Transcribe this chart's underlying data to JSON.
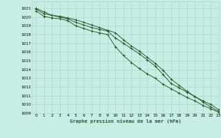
{
  "title": "Graphe pression niveau de la mer (hPa)",
  "bg_color": "#c8ede4",
  "grid_color": "#a8d8cc",
  "line_color": "#2d5a2d",
  "marker_color": "#2d5a2d",
  "xlim": [
    -0.5,
    23
  ],
  "ylim": [
    1009,
    1021.8
  ],
  "yticks": [
    1009,
    1010,
    1011,
    1012,
    1013,
    1014,
    1015,
    1016,
    1017,
    1018,
    1019,
    1020,
    1021
  ],
  "xticks": [
    0,
    1,
    2,
    3,
    4,
    5,
    6,
    7,
    8,
    9,
    10,
    11,
    12,
    13,
    14,
    15,
    16,
    17,
    18,
    19,
    20,
    21,
    22,
    23
  ],
  "series": [
    [
      1020.9,
      1020.4,
      1020.2,
      1020.0,
      1019.8,
      1019.4,
      1019.1,
      1018.8,
      1018.6,
      1018.4,
      1017.6,
      1017.0,
      1016.4,
      1015.8,
      1015.1,
      1014.4,
      1013.4,
      1012.4,
      1011.9,
      1011.4,
      1010.9,
      1010.4,
      1010.0,
      1009.4
    ],
    [
      1020.7,
      1020.1,
      1019.9,
      1019.8,
      1019.6,
      1019.0,
      1018.7,
      1018.4,
      1018.2,
      1018.0,
      1016.6,
      1015.6,
      1014.8,
      1014.1,
      1013.5,
      1013.0,
      1012.3,
      1011.8,
      1011.3,
      1010.8,
      1010.4,
      1009.9,
      1009.5,
      1009.1
    ],
    [
      1021.0,
      1020.6,
      1020.2,
      1020.1,
      1019.9,
      1019.7,
      1019.4,
      1019.1,
      1018.8,
      1018.5,
      1018.2,
      1017.4,
      1016.7,
      1016.1,
      1015.4,
      1014.7,
      1013.9,
      1012.9,
      1012.2,
      1011.5,
      1010.9,
      1010.3,
      1009.7,
      1009.2
    ]
  ]
}
